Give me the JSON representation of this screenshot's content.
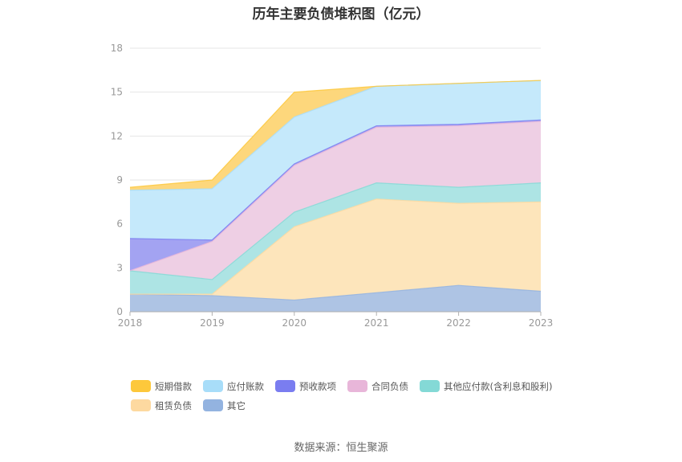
{
  "chart_data": {
    "type": "area",
    "stacked": true,
    "title": "历年主要负债堆积图（亿元）",
    "categories": [
      "2018",
      "2019",
      "2020",
      "2021",
      "2022",
      "2023"
    ],
    "ylim": [
      0,
      18
    ],
    "yticks": [
      0,
      3,
      6,
      9,
      12,
      15,
      18
    ],
    "grid": true,
    "legend_position": "bottom",
    "series": [
      {
        "name": "其它",
        "color": "#aec4e4",
        "legend_color": "#93b3e0",
        "values": [
          1.2,
          1.1,
          0.8,
          1.3,
          1.8,
          1.4
        ]
      },
      {
        "name": "租赁负债",
        "color": "#fde5bb",
        "legend_color": "#fdd9a0",
        "values": [
          0.0,
          0.1,
          5.0,
          6.4,
          5.6,
          6.1
        ]
      },
      {
        "name": "其他应付款(含利息和股利)",
        "color": "#ade4e4",
        "legend_color": "#84d9d6",
        "values": [
          1.6,
          1.0,
          1.0,
          1.1,
          1.1,
          1.3
        ]
      },
      {
        "name": "合同负债",
        "color": "#eecfe4",
        "legend_color": "#e8b6d9",
        "values": [
          0.0,
          2.6,
          3.2,
          3.8,
          4.2,
          4.2
        ]
      },
      {
        "name": "预收款项",
        "color": "#a3a3f2",
        "legend_color": "#7a7df0",
        "values": [
          2.2,
          0.1,
          0.1,
          0.1,
          0.1,
          0.1
        ]
      },
      {
        "name": "应付账款",
        "color": "#c5e9fb",
        "legend_color": "#a8ddf9",
        "values": [
          3.3,
          3.5,
          3.2,
          2.7,
          2.8,
          2.7
        ]
      },
      {
        "name": "短期借款",
        "color": "#fdd77c",
        "legend_color": "#fdc83b",
        "values": [
          0.2,
          0.6,
          1.7,
          0.0,
          0.0,
          0.0
        ]
      }
    ]
  },
  "legend_order": [
    6,
    5,
    4,
    3,
    2,
    1,
    0
  ],
  "source_text": "数据来源：恒生聚源"
}
